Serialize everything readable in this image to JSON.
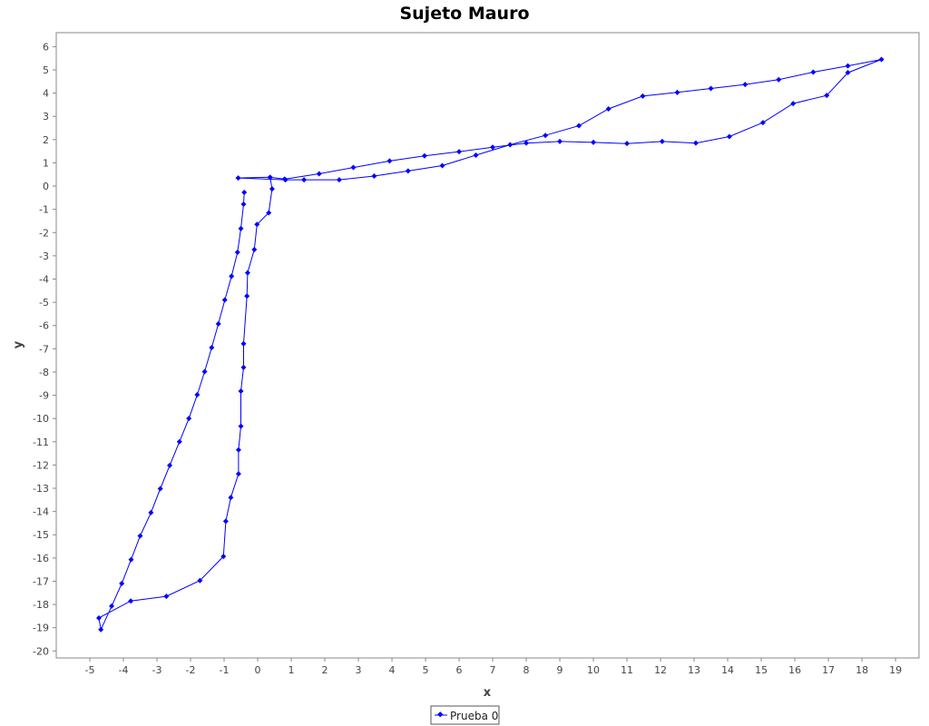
{
  "chart_data": {
    "type": "line",
    "title": "Sujeto Mauro",
    "xlabel": "x",
    "ylabel": "y",
    "xlim": [
      -6,
      19.7
    ],
    "ylim": [
      -20.3,
      6.6
    ],
    "x_ticks": [
      -5,
      -4,
      -3,
      -2,
      -1,
      0,
      1,
      2,
      3,
      4,
      5,
      6,
      7,
      8,
      9,
      10,
      11,
      12,
      13,
      14,
      15,
      16,
      17,
      18,
      19
    ],
    "y_ticks": [
      6,
      5,
      4,
      3,
      2,
      1,
      0,
      -1,
      -2,
      -3,
      -4,
      -5,
      -6,
      -7,
      -8,
      -9,
      -10,
      -11,
      -12,
      -13,
      -14,
      -15,
      -16,
      -17,
      -18,
      -19,
      -20
    ],
    "grid": false,
    "legend": "bottom-center",
    "colors": {
      "series": "#0000ff",
      "plot_border": "#888888",
      "axis": "#888888"
    },
    "series": [
      {
        "name": "Prueba 0",
        "x": [
          -0.4,
          -0.42,
          -0.5,
          -0.6,
          -0.78,
          -0.98,
          -1.17,
          -1.37,
          -1.58,
          -1.8,
          -2.05,
          -2.33,
          -2.62,
          -2.9,
          -3.18,
          -3.5,
          -3.77,
          -4.05,
          -4.35,
          -4.67,
          -4.73,
          -3.78,
          -2.72,
          -1.72,
          -1.02,
          -0.95,
          -0.8,
          -0.57,
          -0.57,
          -0.5,
          -0.5,
          -0.42,
          -0.42,
          -0.32,
          -0.3,
          -0.1,
          -0.02,
          0.33,
          0.43,
          0.37,
          -0.58,
          0.83,
          1.38,
          2.43,
          3.47,
          4.48,
          5.5,
          6.5,
          7.52,
          8.57,
          9.57,
          10.45,
          11.47,
          12.5,
          13.5,
          14.52,
          15.52,
          16.55,
          17.58,
          18.58,
          17.58,
          16.95,
          15.95,
          15.05,
          14.05,
          13.05,
          12.05,
          11.0,
          10.0,
          9.0,
          8.0,
          7.0,
          6.0,
          4.97,
          3.93,
          2.85,
          1.83,
          0.8,
          0.37
        ]
      }
    ],
    "y_values": [
      -0.27,
      -0.78,
      -1.83,
      -2.85,
      -3.88,
      -4.9,
      -5.93,
      -6.95,
      -7.98,
      -8.98,
      -10.0,
      -11.0,
      -12.02,
      -13.02,
      -14.05,
      -15.05,
      -16.07,
      -17.1,
      -18.07,
      -19.08,
      -18.58,
      -17.85,
      -17.65,
      -16.97,
      -15.93,
      -14.42,
      -13.4,
      -12.38,
      -11.35,
      -10.33,
      -8.82,
      -7.8,
      -6.78,
      -4.73,
      -3.73,
      -2.73,
      -1.65,
      -1.15,
      -0.12,
      0.38,
      0.35,
      0.27,
      0.27,
      0.27,
      0.43,
      0.65,
      0.88,
      1.33,
      1.78,
      2.18,
      2.6,
      3.32,
      3.87,
      4.03,
      4.2,
      4.37,
      4.58,
      4.9,
      5.17,
      5.45,
      4.88,
      3.9,
      3.55,
      2.73,
      2.13,
      1.85,
      1.92,
      1.83,
      1.88,
      1.92,
      1.85,
      1.67,
      1.48,
      1.3,
      1.08,
      0.8,
      0.53,
      0.3,
      0.38
    ]
  },
  "legend": {
    "label": "Prueba 0"
  }
}
